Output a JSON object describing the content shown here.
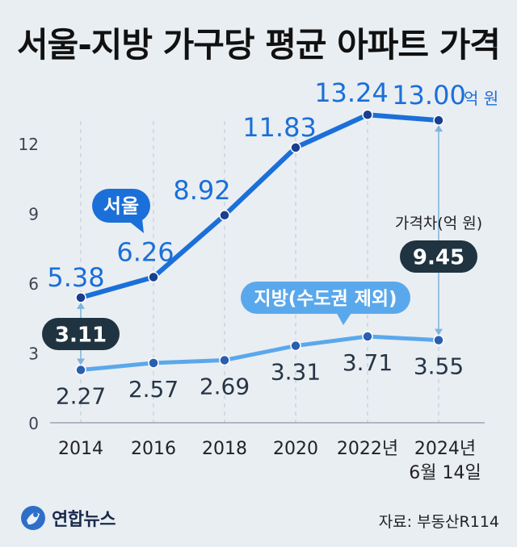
{
  "title": "서울-지방 가구당 평균 아파트 가격",
  "source": "자료: 부동산R114",
  "logo_text": "연합뉴스",
  "chart_data": {
    "type": "line",
    "title": "서울-지방 가구당 평균 아파트 가격",
    "categories": [
      "2014",
      "2016",
      "2018",
      "2020",
      "2022년",
      "2024년\n6월 14일"
    ],
    "category_lines": [
      [
        "2014"
      ],
      [
        "2016"
      ],
      [
        "2018"
      ],
      [
        "2020"
      ],
      [
        "2022년"
      ],
      [
        "2024년",
        "6월 14일"
      ]
    ],
    "y_ticks": [
      "0",
      "3",
      "6",
      "9",
      "12"
    ],
    "ylim": [
      0,
      14
    ],
    "unit": "억 원",
    "grid": "vertical dashed",
    "series": [
      {
        "name": "서울",
        "color": "#1b6fd8",
        "values": [
          5.38,
          6.26,
          8.92,
          11.83,
          13.24,
          13.0
        ],
        "labels": [
          "5.38",
          "6.26",
          "8.92",
          "11.83",
          "13.24",
          "13.00"
        ]
      },
      {
        "name": "지방(수도권 제외)",
        "color": "#5aa8ec",
        "values": [
          2.27,
          2.57,
          2.69,
          3.31,
          3.71,
          3.55
        ],
        "labels": [
          "2.27",
          "2.57",
          "2.69",
          "3.31",
          "3.71",
          "3.55"
        ]
      }
    ],
    "gap_annotations": [
      {
        "category": "2014",
        "value": 3.11,
        "label": "3.11"
      },
      {
        "category": "2024년\n6월 14일",
        "value": 9.45,
        "label": "9.45",
        "caption": "가격차(억 원)"
      }
    ]
  }
}
